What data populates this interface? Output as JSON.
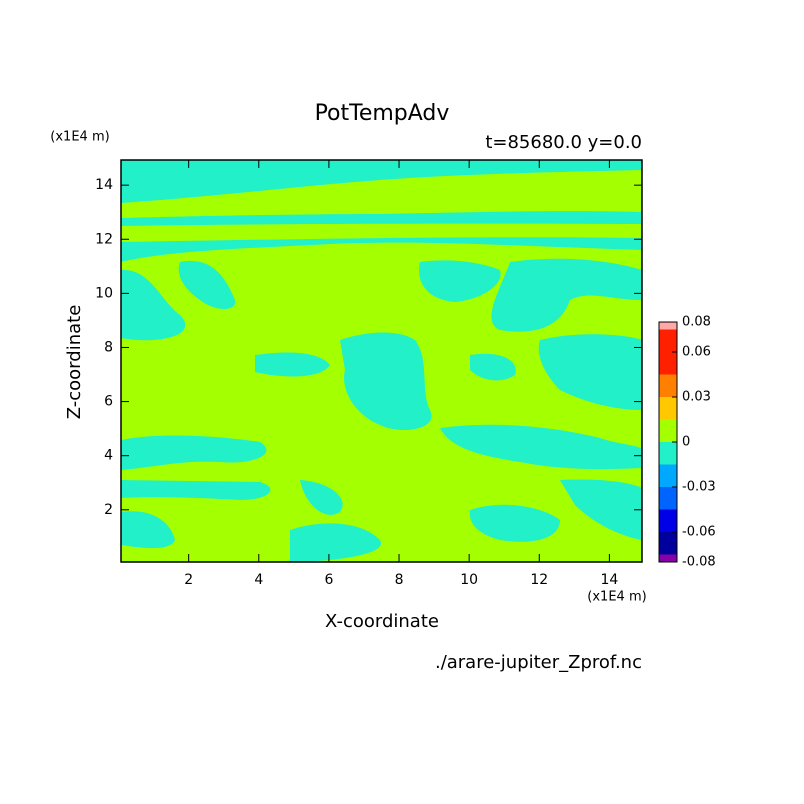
{
  "chart_data": {
    "type": "contour",
    "title": "PotTempAdv",
    "subtitle": "t=85680.0 y=0.0",
    "x_label": "X-coordinate",
    "y_label": "Z-coordinate",
    "x_unit": "(x1E4 m)",
    "y_unit": "(x1E4 m)",
    "source": "./arare-jupiter_Zprof.nc",
    "xlim": [
      0.07,
      14.93
    ],
    "ylim": [
      0.07,
      14.93
    ],
    "xticks": [
      2,
      4,
      6,
      8,
      10,
      12,
      14
    ],
    "yticks": [
      2,
      4,
      6,
      8,
      10,
      12,
      14
    ],
    "colorbar": {
      "levels": [
        -0.08,
        -0.075,
        -0.06,
        -0.045,
        -0.03,
        -0.015,
        0,
        0.015,
        0.03,
        0.045,
        0.075,
        0.08
      ],
      "colors": [
        "#8a00a8",
        "#00009c",
        "#0000e6",
        "#0064ff",
        "#00a8ff",
        "#22f0c8",
        "#a4ff00",
        "#ffc800",
        "#ff8000",
        "#ff2000",
        "#ffa8a8"
      ],
      "lim": [
        -0.08,
        0.08
      ],
      "ticks": [
        -0.08,
        -0.06,
        -0.03,
        0,
        0.03,
        0.06,
        0.08
      ]
    }
  }
}
